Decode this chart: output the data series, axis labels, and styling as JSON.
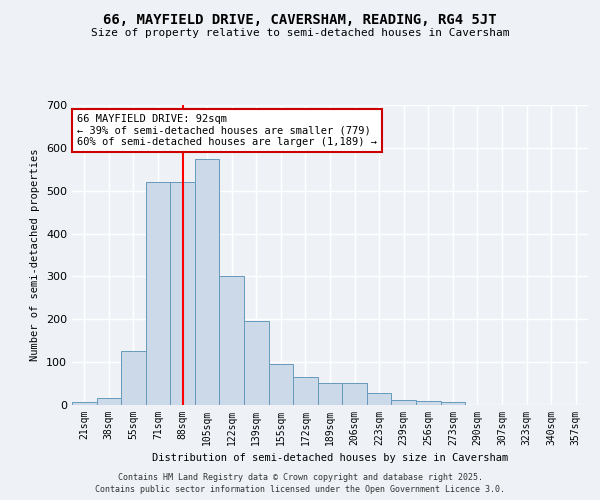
{
  "title1": "66, MAYFIELD DRIVE, CAVERSHAM, READING, RG4 5JT",
  "title2": "Size of property relative to semi-detached houses in Caversham",
  "xlabel": "Distribution of semi-detached houses by size in Caversham",
  "ylabel": "Number of semi-detached properties",
  "bar_values": [
    7,
    17,
    125,
    520,
    520,
    575,
    300,
    197,
    95,
    65,
    52,
    52,
    28,
    12,
    10,
    7,
    0,
    0,
    0,
    0,
    0
  ],
  "bin_labels": [
    "21sqm",
    "38sqm",
    "55sqm",
    "71sqm",
    "88sqm",
    "105sqm",
    "122sqm",
    "139sqm",
    "155sqm",
    "172sqm",
    "189sqm",
    "206sqm",
    "223sqm",
    "239sqm",
    "256sqm",
    "273sqm",
    "290sqm",
    "307sqm",
    "323sqm",
    "340sqm",
    "357sqm"
  ],
  "bar_color": "#ccd9e8",
  "bar_edge_color": "#6699bb",
  "red_line_x": 4,
  "annotation_text": "66 MAYFIELD DRIVE: 92sqm\n← 39% of semi-detached houses are smaller (779)\n60% of semi-detached houses are larger (1,189) →",
  "annotation_box_color": "#ffffff",
  "annotation_box_edge": "#cc0000",
  "footnote1": "Contains HM Land Registry data © Crown copyright and database right 2025.",
  "footnote2": "Contains public sector information licensed under the Open Government Licence 3.0.",
  "background_color": "#eef2f7",
  "grid_color": "#ffffff",
  "ylim": [
    0,
    700
  ],
  "yticks": [
    0,
    100,
    200,
    300,
    400,
    500,
    600,
    700
  ]
}
